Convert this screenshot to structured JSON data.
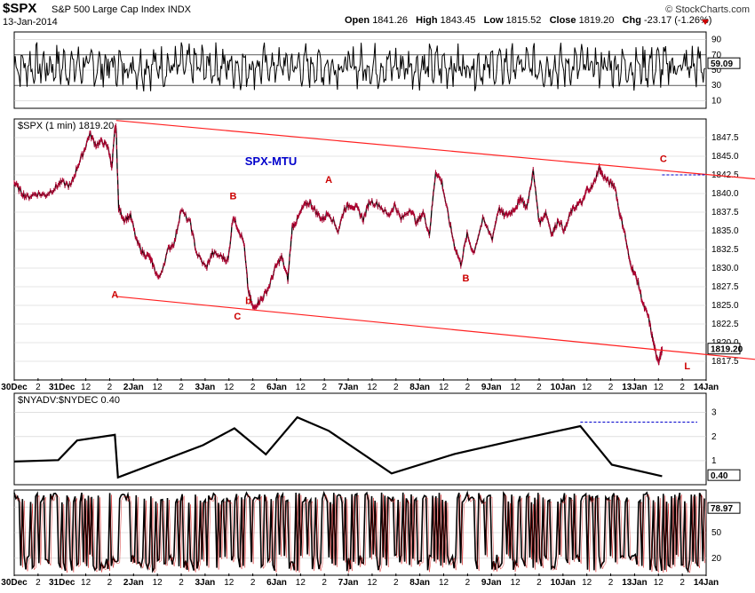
{
  "header": {
    "symbol": "$SPX",
    "name": "S&P 500 Large Cap Index",
    "exchange": "INDX",
    "date": "13-Jan-2014",
    "copyright": "© StockCharts.com",
    "open_label": "Open",
    "open": "1841.26",
    "high_label": "High",
    "high": "1843.45",
    "low_label": "Low",
    "low": "1815.52",
    "close_label": "Close",
    "close": "1819.20",
    "chg_label": "Chg",
    "chg": "-23.17 (-1.26%)"
  },
  "colors": {
    "price_bar": "#b00030",
    "line": "#000000",
    "trend": "#ff2020",
    "wave_label": "#cc0000",
    "title": "#0000cc",
    "dashed": "#0000cc",
    "grid": "#cccccc"
  },
  "x_axis": {
    "ticks": [
      "30Dec",
      "2",
      "31Dec",
      "12",
      "2",
      "2Jan",
      "12",
      "2",
      "3Jan",
      "12",
      "2",
      "6Jan",
      "12",
      "2",
      "7Jan",
      "12",
      "2",
      "8Jan",
      "12",
      "2",
      "9Jan",
      "12",
      "2",
      "10Jan",
      "12",
      "2",
      "13Jan",
      "12",
      "2",
      "14Jan"
    ]
  },
  "chart_data": [
    {
      "type": "line",
      "panel": "rsi",
      "y_ticks": [
        90,
        70,
        50,
        30,
        10
      ],
      "last_value": "59.09",
      "ylim": [
        0,
        100
      ]
    },
    {
      "type": "line",
      "panel": "price",
      "label": "$SPX (1 min) 1819.20",
      "annotation_title": "SPX-MTU",
      "y_ticks": [
        "1847.5",
        "1845.0",
        "1842.5",
        "1840.0",
        "1837.5",
        "1835.0",
        "1832.5",
        "1830.0",
        "1827.5",
        "1825.0",
        "1822.5",
        "1820.0",
        "1817.5"
      ],
      "ylim": [
        1815,
        1850
      ],
      "last_value": "1819.20",
      "wave_labels": [
        {
          "text": "A",
          "session": 1.6,
          "value": 1826.0
        },
        {
          "text": "B",
          "session": 3.48,
          "value": 1839.2
        },
        {
          "text": "C",
          "session": 3.55,
          "value": 1823.1
        },
        {
          "text": "b",
          "session": 3.72,
          "value": 1825.2
        },
        {
          "text": "A",
          "session": 5.0,
          "value": 1841.4
        },
        {
          "text": "B",
          "session": 7.18,
          "value": 1828.2
        },
        {
          "text": "C",
          "session": 10.32,
          "value": 1844.2
        },
        {
          "text": "L",
          "session": 10.7,
          "value": 1816.4
        }
      ],
      "series": [
        {
          "points": [
            [
              0,
              1841.5
            ],
            [
              0.1,
              1840.3
            ],
            [
              0.2,
              1839.5
            ],
            [
              0.35,
              1840.0
            ],
            [
              0.5,
              1839.8
            ],
            [
              0.65,
              1840.8
            ],
            [
              0.75,
              1841.5
            ],
            [
              0.9,
              1841.0
            ],
            [
              1.0,
              1843.5
            ],
            [
              1.1,
              1845.5
            ],
            [
              1.2,
              1848.0
            ],
            [
              1.3,
              1846.5
            ],
            [
              1.4,
              1847.0
            ],
            [
              1.5,
              1846.0
            ],
            [
              1.55,
              1843.5
            ],
            [
              1.6,
              1848.5
            ],
            [
              1.62,
              1848.8
            ],
            [
              1.66,
              1838.0
            ],
            [
              1.75,
              1836.5
            ],
            [
              1.85,
              1837.0
            ],
            [
              1.95,
              1833.5
            ],
            [
              2.05,
              1832.0
            ],
            [
              2.15,
              1831.5
            ],
            [
              2.2,
              1830.5
            ],
            [
              2.3,
              1828.5
            ],
            [
              2.45,
              1832.5
            ],
            [
              2.55,
              1833.5
            ],
            [
              2.65,
              1837.8
            ],
            [
              2.8,
              1836.0
            ],
            [
              2.9,
              1832.0
            ],
            [
              3.05,
              1830.0
            ],
            [
              3.15,
              1832.0
            ],
            [
              3.3,
              1831.5
            ],
            [
              3.4,
              1831.0
            ],
            [
              3.48,
              1837.0
            ],
            [
              3.55,
              1835.5
            ],
            [
              3.65,
              1833.5
            ],
            [
              3.72,
              1827.0
            ],
            [
              3.8,
              1824.5
            ],
            [
              3.88,
              1825.5
            ],
            [
              3.95,
              1826.0
            ],
            [
              4.05,
              1827.5
            ],
            [
              4.15,
              1830.0
            ],
            [
              4.25,
              1831.5
            ],
            [
              4.35,
              1828.5
            ],
            [
              4.42,
              1835.5
            ],
            [
              4.5,
              1836.5
            ],
            [
              4.6,
              1838.3
            ],
            [
              4.7,
              1838.8
            ],
            [
              4.8,
              1837.5
            ],
            [
              4.9,
              1836.5
            ],
            [
              5.0,
              1837.5
            ],
            [
              5.15,
              1835.0
            ],
            [
              5.25,
              1838.0
            ],
            [
              5.35,
              1838.5
            ],
            [
              5.45,
              1838.0
            ],
            [
              5.55,
              1836.5
            ],
            [
              5.65,
              1839.0
            ],
            [
              5.8,
              1838.5
            ],
            [
              5.95,
              1837.0
            ],
            [
              6.05,
              1838.5
            ],
            [
              6.15,
              1836.5
            ],
            [
              6.3,
              1838.0
            ],
            [
              6.4,
              1836.0
            ],
            [
              6.5,
              1837.5
            ],
            [
              6.6,
              1834.5
            ],
            [
              6.7,
              1843.0
            ],
            [
              6.8,
              1841.5
            ],
            [
              6.9,
              1837.0
            ],
            [
              7.0,
              1833.0
            ],
            [
              7.1,
              1830.5
            ],
            [
              7.2,
              1834.5
            ],
            [
              7.3,
              1832.0
            ],
            [
              7.45,
              1836.5
            ],
            [
              7.6,
              1834.0
            ],
            [
              7.7,
              1838.0
            ],
            [
              7.8,
              1837.0
            ],
            [
              7.9,
              1837.5
            ],
            [
              8.0,
              1838.5
            ],
            [
              8.05,
              1839.5
            ],
            [
              8.15,
              1838.0
            ],
            [
              8.25,
              1843.0
            ],
            [
              8.35,
              1836.0
            ],
            [
              8.45,
              1837.5
            ],
            [
              8.55,
              1834.5
            ],
            [
              8.65,
              1836.5
            ],
            [
              8.75,
              1835.0
            ],
            [
              8.85,
              1837.5
            ],
            [
              8.95,
              1838.5
            ],
            [
              9.05,
              1839.0
            ],
            [
              9.1,
              1840.5
            ],
            [
              9.2,
              1841.0
            ],
            [
              9.3,
              1843.5
            ],
            [
              9.35,
              1842.5
            ],
            [
              9.45,
              1841.5
            ],
            [
              9.55,
              1841.0
            ],
            [
              9.62,
              1837.5
            ],
            [
              9.7,
              1835.0
            ],
            [
              9.78,
              1831.0
            ],
            [
              9.85,
              1829.5
            ],
            [
              9.92,
              1828.0
            ],
            [
              10.0,
              1825.0
            ],
            [
              10.08,
              1823.5
            ],
            [
              10.15,
              1820.5
            ],
            [
              10.2,
              1818.5
            ],
            [
              10.25,
              1817.5
            ],
            [
              10.3,
              1819.2
            ]
          ]
        }
      ],
      "trend_lines": [
        {
          "from": [
            1.62,
            1849.8
          ],
          "to": [
            11.0,
            1842.2
          ]
        },
        {
          "from": [
            1.62,
            1826.2
          ],
          "to": [
            11.0,
            1818.0
          ]
        }
      ],
      "dashed_line": {
        "from": [
          10.3,
          1842.5
        ],
        "to": [
          10.85,
          1842.5
        ]
      }
    },
    {
      "type": "line",
      "panel": "adv_dec",
      "label": "$NYADV:$NYDEC 0.40",
      "y_ticks": [
        3,
        2,
        1
      ],
      "last_value": "0.40",
      "ylim": [
        0,
        3.8
      ]
    },
    {
      "type": "line",
      "panel": "stochastic",
      "y_ticks": [
        80,
        50,
        20
      ],
      "last_value": "78.97",
      "ylim": [
        0,
        100
      ]
    }
  ]
}
